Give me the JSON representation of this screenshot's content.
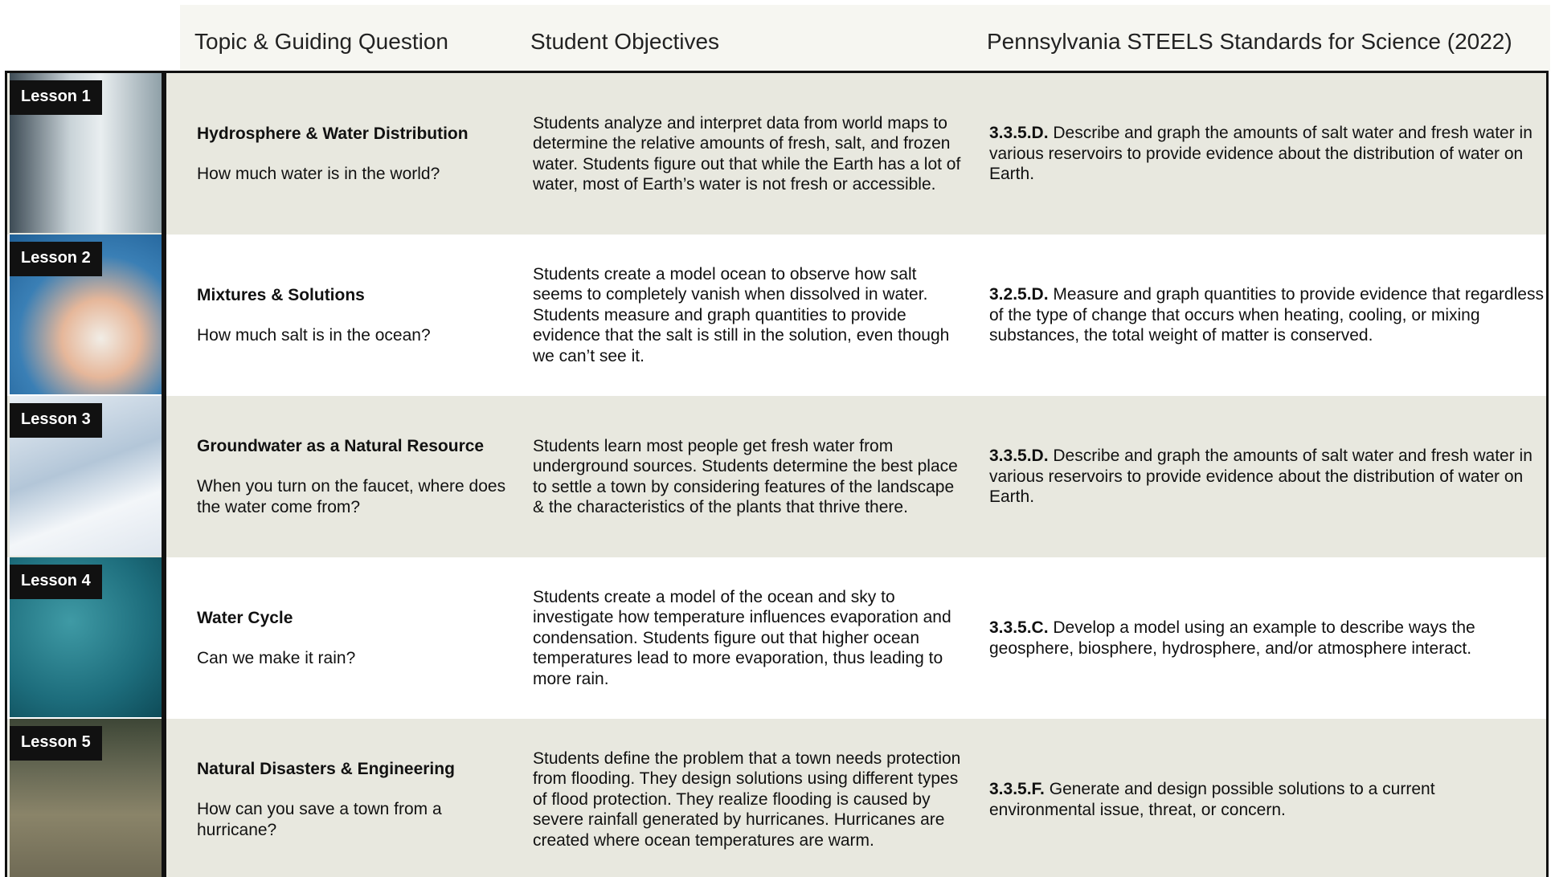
{
  "header": {
    "columns": [
      "Topic & Guiding Question",
      "Student Objectives",
      "Pennsylvania STEELS Standards for Science (2022)"
    ]
  },
  "table": {
    "rows": [
      {
        "lesson": "Lesson 1",
        "topic": "Hydrosphere & Water Distribution",
        "question": "How much water is in the world?",
        "objectives": "Students analyze and interpret data from world maps to determine the relative amounts of fresh, salt, and frozen water. Students figure out that while the Earth has a lot of water, most of Earth’s water is not fresh or accessible.",
        "standard_code": "3.3.5.D.",
        "standard_text": "Describe and graph the amounts of salt water and fresh water in various reservoirs to provide evidence about the distribution of water on Earth."
      },
      {
        "lesson": "Lesson 2",
        "topic": "Mixtures & Solutions",
        "question": "How much salt is in the ocean?",
        "objectives": "Students create a model ocean to observe how salt seems to completely vanish when dissolved in water. Students measure and graph quantities to provide evidence that the salt is still in the solution, even though we can’t see it.",
        "standard_code": "3.2.5.D.",
        "standard_text": "Measure and graph quantities to provide evidence that regardless of the type of change that occurs when heating, cooling, or mixing substances, the total weight of matter is conserved."
      },
      {
        "lesson": "Lesson 3",
        "topic": "Groundwater as a Natural Resource",
        "question": "When you turn on the faucet, where does the water come from?",
        "objectives": "Students learn most people get fresh water from underground sources. Students determine the best place to settle a town by considering features of the landscape & the characteristics of the plants that thrive there.",
        "standard_code": "3.3.5.D.",
        "standard_text": "Describe and graph the amounts of salt water and fresh water in various reservoirs to provide evidence about the distribution of water on Earth."
      },
      {
        "lesson": "Lesson 4",
        "topic": "Water Cycle",
        "question": "Can we make it rain?",
        "objectives": "Students create a model of the ocean and sky to investigate how temperature influences evaporation and condensation. Students figure out that higher ocean temperatures lead to more evaporation, thus leading to more rain.",
        "standard_code": "3.3.5.C.",
        "standard_text": "Develop a model using an example to describe ways the geosphere, biosphere, hydrosphere, and/or atmosphere interact."
      },
      {
        "lesson": "Lesson 5",
        "topic": "Natural Disasters & Engineering",
        "question": "How can you save a town from a hurricane?",
        "objectives": "Students define the problem that a town needs protection from flooding. They design solutions using different types of flood protection. They realize flooding is caused by severe rainfall generated by hurricanes. Hurricanes are created where ocean temperatures are warm.",
        "standard_code": "3.3.5.F.",
        "standard_text": "Generate and design possible solutions to a current environmental issue, threat, or concern."
      }
    ]
  }
}
